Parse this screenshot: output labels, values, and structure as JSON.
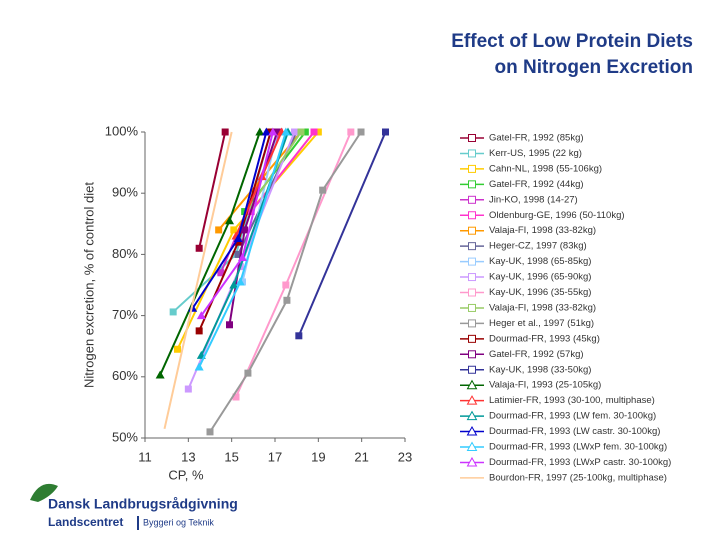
{
  "chart_data": {
    "type": "line",
    "title_lines": [
      "Effect of Low Protein Diets",
      "on Nitrogen Excretion"
    ],
    "y_label": "Nitrogen excretion, % of control diet",
    "x_label": "CP, %",
    "xlim": [
      11,
      23
    ],
    "xticks": [
      11,
      13,
      15,
      17,
      19,
      21,
      23
    ],
    "ylim": [
      50,
      100
    ],
    "yticks": [
      {
        "value": 50,
        "label": "50%"
      },
      {
        "value": 60,
        "label": "60%"
      },
      {
        "value": 70,
        "label": "70%"
      },
      {
        "value": 80,
        "label": "80%"
      },
      {
        "value": 90,
        "label": "90%"
      },
      {
        "value": 100,
        "label": "100%"
      }
    ],
    "grid": false,
    "legend": "right",
    "series": [
      {
        "name": "Gatel-FR, 1992 (85kg)",
        "color": "#990033",
        "marker": "square",
        "x": [
          13.5,
          14.7
        ],
        "values": [
          81,
          100
        ]
      },
      {
        "name": "Kerr-US, 1995 (22 kg)",
        "color": "#66cccc",
        "marker": "square",
        "x": [
          12.3,
          15.2,
          16.8
        ],
        "values": [
          70.6,
          80,
          100
        ]
      },
      {
        "name": "Cahn-NL, 1998 (55-106kg)",
        "color": "#ffcc00",
        "marker": "square",
        "x": [
          12.5,
          15.1,
          19.0
        ],
        "values": [
          64.5,
          84,
          100
        ]
      },
      {
        "name": "Gatel-FR, 1992 (44kg)",
        "color": "#33cc33",
        "marker": "square",
        "x": [
          15.6,
          18.4
        ],
        "values": [
          87,
          100
        ]
      },
      {
        "name": "Jin-KO, 1998 (14-27)",
        "color": "#cc33cc",
        "marker": "square",
        "x": [
          14.5,
          17.2
        ],
        "values": [
          77,
          100
        ]
      },
      {
        "name": "Oldenburg-GE, 1996 (50-110kg)",
        "color": "#ff33cc",
        "marker": "square",
        "x": [
          15.9,
          18.8
        ],
        "values": [
          87,
          100
        ]
      },
      {
        "name": "Valaja-FI, 1998 (33-82kg)",
        "color": "#ff9900",
        "marker": "square",
        "x": [
          14.4,
          18.2
        ],
        "values": [
          84,
          100
        ]
      },
      {
        "name": "Heger-CZ, 1997 (83kg)",
        "color": "#666699",
        "marker": "square",
        "x": [
          15.3,
          18.0
        ],
        "values": [
          80,
          100
        ]
      },
      {
        "name": "Kay-UK, 1998 (65-85kg)",
        "color": "#99ccff",
        "marker": "square",
        "x": [
          15.5,
          17.1
        ],
        "values": [
          75.5,
          100
        ]
      },
      {
        "name": "Kay-UK, 1996 (65-90kg)",
        "color": "#cc99ff",
        "marker": "square",
        "x": [
          13.0,
          15.4,
          17.9
        ],
        "values": [
          58,
          78,
          100
        ]
      },
      {
        "name": "Kay-UK, 1996 (35-55kg)",
        "color": "#ff99cc",
        "marker": "square",
        "x": [
          15.2,
          17.5,
          20.5
        ],
        "values": [
          56.7,
          75,
          100
        ]
      },
      {
        "name": "Valaja-FI, 1998 (33-82kg)",
        "color": "#99cc66",
        "marker": "square",
        "x": [
          15.9,
          18.2
        ],
        "values": [
          88,
          100
        ]
      },
      {
        "name": "Heger et al., 1997 (51kg)",
        "color": "#999999",
        "marker": "square",
        "x": [
          14.0,
          15.75,
          17.55,
          19.2,
          20.97
        ],
        "values": [
          51,
          60.6,
          72.5,
          90.5,
          100
        ]
      },
      {
        "name": "Dourmad-FR, 1993 (45kg)",
        "color": "#990000",
        "marker": "square",
        "x": [
          13.5,
          15.3,
          16.8
        ],
        "values": [
          67.5,
          82,
          100
        ]
      },
      {
        "name": "Gatel-FR, 1992 (57kg)",
        "color": "#800080",
        "marker": "square",
        "x": [
          14.9,
          15.6,
          17.1
        ],
        "values": [
          68.5,
          84,
          100
        ]
      },
      {
        "name": "Kay-UK, 1998 (33-50kg)",
        "color": "#333399",
        "marker": "square",
        "x": [
          18.1,
          22.1
        ],
        "values": [
          66.7,
          100
        ]
      },
      {
        "name": "Valaja-FI, 1993 (25-105kg)",
        "color": "#006600",
        "marker": "triangle",
        "x": [
          11.7,
          14.9,
          16.3
        ],
        "values": [
          60.3,
          85.5,
          100
        ]
      },
      {
        "name": "Latimier-FR, 1993 (30-100, multiphase)",
        "color": "#ff3333",
        "marker": "triangle",
        "x": [
          15.2,
          16.4,
          17.3
        ],
        "values": [
          83,
          92.7,
          100
        ]
      },
      {
        "name": "Dourmad-FR, 1993 (LW fem. 30-100kg)",
        "color": "#009999",
        "marker": "triangle",
        "x": [
          13.6,
          15.1,
          17.6
        ],
        "values": [
          63.5,
          75,
          100
        ]
      },
      {
        "name": "Dourmad-FR, 1993 (LW castr. 30-100kg)",
        "color": "#0000cc",
        "marker": "triangle",
        "x": [
          13.2,
          15.3,
          16.6
        ],
        "values": [
          71.2,
          82.6,
          100
        ]
      },
      {
        "name": "Dourmad-FR, 1993 (LWxP fem. 30-100kg)",
        "color": "#33ccff",
        "marker": "triangle",
        "x": [
          13.5,
          15.4,
          17.5
        ],
        "values": [
          61.6,
          75.5,
          100
        ]
      },
      {
        "name": "Dourmad-FR, 1993 (LWxP castr. 30-100kg)",
        "color": "#cc33ff",
        "marker": "triangle",
        "x": [
          13.6,
          15.5,
          16.9
        ],
        "values": [
          70,
          79.5,
          100
        ]
      },
      {
        "name": "Bourdon-FR, 1997 (25-100kg, multiphase)",
        "color": "#ffcc99",
        "marker": "none",
        "x": [
          11.9,
          13.2,
          15.0
        ],
        "values": [
          51.5,
          72,
          100
        ]
      }
    ],
    "logo": {
      "line1": "Dansk Landbrugsrådgivning",
      "line2": "Landscentret",
      "line3": "Byggeri og Teknik"
    }
  }
}
